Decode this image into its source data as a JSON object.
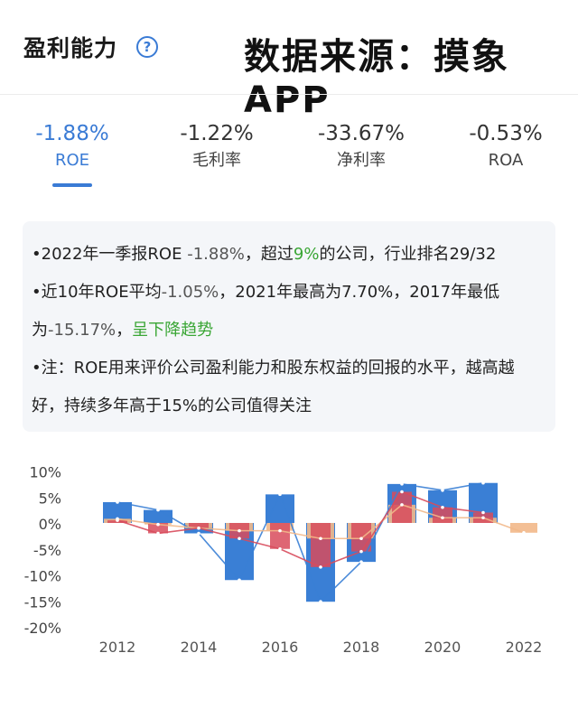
{
  "header": {
    "title": "盈利能力",
    "help_icon": "question-circle-icon",
    "source": "数据来源：摸象APP"
  },
  "tabs": [
    {
      "value": "-1.88%",
      "label": "ROE",
      "active": true
    },
    {
      "value": "-1.22%",
      "label": "毛利率",
      "active": false
    },
    {
      "value": "-33.67%",
      "label": "净利率",
      "active": false
    },
    {
      "value": "-0.53%",
      "label": "ROA",
      "active": false
    }
  ],
  "colors": {
    "accent": "#3a7bd5",
    "green": "#3aa635",
    "bar_blue": "#3a7fd5",
    "bar_orange": "#f2b88a",
    "bar_red": "#d84b5c"
  },
  "info": {
    "line1": {
      "p1": "•2022年一季报ROE ",
      "v1": "-1.88%",
      "p2": "，超过",
      "v2": "9%",
      "p3": "的公司，行业排名29/32"
    },
    "line2": {
      "p1": "•近10年ROE平均",
      "v1": "-1.05%",
      "p2": "，2021年最高为7.70%，2017年最低为",
      "v2": "-15.17%",
      "p3": "，",
      "trend": "呈下降趋势"
    },
    "line3": "•注：ROE用来评价公司盈利能力和股东权益的回报的水平，越高越好，持续多年高于15%的公司值得关注"
  },
  "chart_data": {
    "type": "bar",
    "x": [
      "2012",
      "2013",
      "2014",
      "2015",
      "2016",
      "2017",
      "2018",
      "2019",
      "2020",
      "2021",
      "2022"
    ],
    "x_tick_labels": [
      "2012",
      "2014",
      "2016",
      "2018",
      "2020",
      "2022"
    ],
    "y_tick_labels": [
      "10%",
      "5%",
      "0%",
      "-5%",
      "-10%",
      "-15%",
      "-20%"
    ],
    "y_ticks": [
      10,
      5,
      0,
      -5,
      -10,
      -15,
      -20
    ],
    "ylim": [
      -20,
      10
    ],
    "series": [
      {
        "key": "blue",
        "color": "#3a7fd5",
        "values": [
          4.0,
          2.5,
          -2.0,
          -11.0,
          5.5,
          -15.17,
          -7.5,
          7.5,
          6.3,
          7.7,
          null
        ]
      },
      {
        "key": "orange",
        "color": "#f2b88a",
        "values": [
          0.8,
          -0.3,
          -1.0,
          -1.5,
          -1.5,
          -3.0,
          -3.0,
          3.5,
          1.0,
          1.0,
          -1.88
        ]
      },
      {
        "key": "red",
        "color": "#d84b5c",
        "values": [
          0.5,
          -2.0,
          -1.0,
          -3.0,
          -5.0,
          -8.5,
          -5.5,
          6.0,
          3.0,
          2.0,
          null
        ]
      }
    ],
    "grid": false,
    "legend": "none"
  }
}
